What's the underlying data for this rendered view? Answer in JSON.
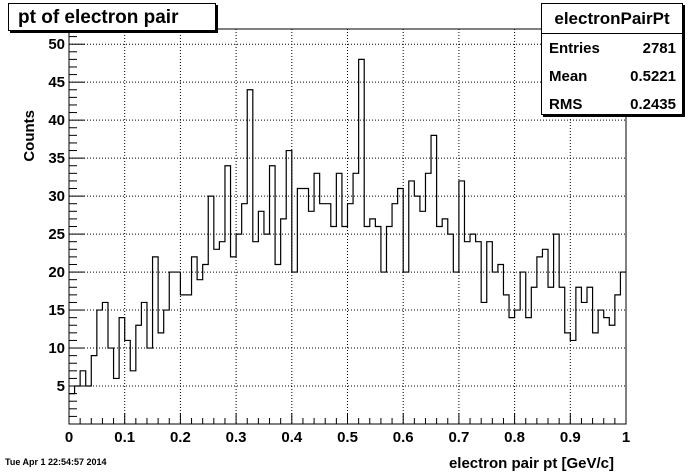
{
  "chart_data": {
    "type": "histogram",
    "title": "pt of electron pair",
    "xlabel": "electron pair pt [GeV/c]",
    "ylabel": "Counts",
    "xlim": [
      0,
      1
    ],
    "ylim": [
      0,
      52
    ],
    "grid": true,
    "bin_width": 0.01,
    "x_ticks": [
      "0",
      "0.1",
      "0.2",
      "0.3",
      "0.4",
      "0.5",
      "0.6",
      "0.7",
      "0.8",
      "0.9",
      "1"
    ],
    "y_ticks": [
      "5",
      "10",
      "15",
      "20",
      "25",
      "30",
      "35",
      "40",
      "45",
      "50"
    ],
    "values": [
      4,
      5,
      7,
      5,
      9,
      15,
      16,
      10,
      6,
      14,
      11,
      7,
      13,
      16,
      10,
      22,
      12,
      15,
      20,
      20,
      17,
      17,
      22,
      19,
      21,
      30,
      23,
      24,
      34,
      22,
      25,
      29,
      44,
      24,
      28,
      25,
      34,
      21,
      27,
      36,
      20,
      31,
      31,
      28,
      33,
      29,
      29,
      26,
      33,
      26,
      29,
      33,
      48,
      26,
      27,
      26,
      20,
      26,
      29,
      31,
      20,
      32,
      30,
      28,
      33,
      38,
      26,
      27,
      25,
      20,
      32,
      24,
      25,
      24,
      16,
      24,
      20,
      21,
      17,
      14,
      15,
      20,
      14,
      18,
      22,
      23,
      18,
      25,
      18,
      12,
      11,
      18,
      16,
      18,
      12,
      15,
      14,
      13,
      17,
      20
    ]
  },
  "stats": {
    "name": "electronPairPt",
    "entries_label": "Entries",
    "entries": "2781",
    "mean_label": "Mean",
    "mean": "0.5221",
    "rms_label": "RMS",
    "rms": "0.2435"
  },
  "timestamp": "Tue Apr  1 22:54:57 2014"
}
